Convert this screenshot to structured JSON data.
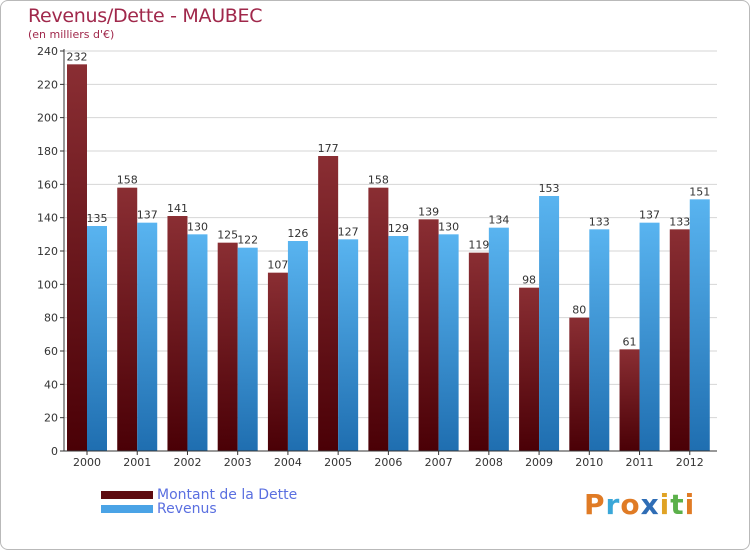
{
  "chart_data": {
    "type": "bar",
    "title": "Revenus/Dette - MAUBEC",
    "subtitle": "(en milliers d'€)",
    "xlabel": "",
    "ylabel": "",
    "ylim": [
      0,
      240
    ],
    "yticks": [
      0,
      20,
      40,
      60,
      80,
      100,
      120,
      140,
      160,
      180,
      200,
      220,
      240
    ],
    "grid": "horizontal",
    "legend_position": "bottom-left",
    "categories": [
      "2000",
      "2001",
      "2002",
      "2003",
      "2004",
      "2005",
      "2006",
      "2007",
      "2008",
      "2009",
      "2010",
      "2011",
      "2012"
    ],
    "series": [
      {
        "name": "Montant de la Dette",
        "color": "#7a1a1f",
        "values": [
          232,
          158,
          141,
          125,
          107,
          177,
          158,
          139,
          119,
          98,
          80,
          61,
          133
        ]
      },
      {
        "name": "Revenus",
        "color": "#4aa3e6",
        "values": [
          135,
          137,
          130,
          122,
          126,
          127,
          129,
          130,
          134,
          153,
          133,
          137,
          151
        ]
      }
    ]
  },
  "legend": {
    "items": [
      {
        "label": "Montant de la Dette",
        "color": "#5e0b10"
      },
      {
        "label": "Revenus",
        "color": "#4aa3e6"
      }
    ]
  },
  "brand": {
    "letters": [
      "P",
      "r",
      "o",
      "x",
      "i",
      "t",
      "i"
    ],
    "colors": [
      "#e07b25",
      "#3aa7d8",
      "#e07b25",
      "#2f6db5",
      "#e0a325",
      "#5bb04a",
      "#e07b25"
    ]
  }
}
